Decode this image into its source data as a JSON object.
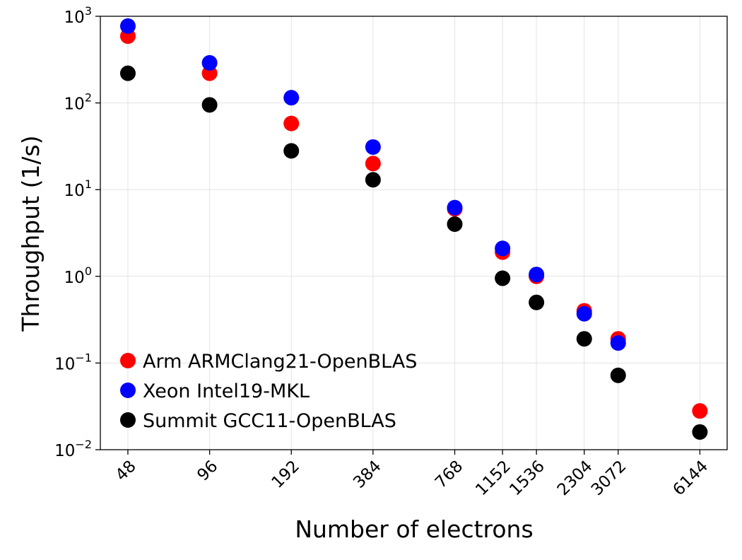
{
  "chart_data": {
    "type": "scatter",
    "title": "",
    "xlabel": "Number of electrons",
    "ylabel": "Throughput (1/s)",
    "xscale": "log",
    "yscale": "log",
    "x": [
      48,
      96,
      192,
      384,
      768,
      1152,
      1536,
      2304,
      3072,
      6144
    ],
    "x_tick_labels": [
      "48",
      "96",
      "192",
      "384",
      "768",
      "1152",
      "1536",
      "2304",
      "3072",
      "6144"
    ],
    "ylim": [
      0.01,
      1000
    ],
    "y_ticks": [
      {
        "value": 0.01,
        "base": "10",
        "exp": "−2"
      },
      {
        "value": 0.1,
        "base": "10",
        "exp": "−1"
      },
      {
        "value": 1,
        "base": "10",
        "exp": "0"
      },
      {
        "value": 10,
        "base": "10",
        "exp": "1"
      },
      {
        "value": 100,
        "base": "10",
        "exp": "2"
      },
      {
        "value": 1000,
        "base": "10",
        "exp": "3"
      }
    ],
    "grid": true,
    "legend_position": "bottom-left",
    "series": [
      {
        "name": "Arm ARMClang21-OpenBLAS",
        "color": "#ff0000",
        "values": [
          590,
          220,
          58,
          20,
          6.0,
          1.9,
          1.0,
          0.4,
          0.19,
          0.028
        ]
      },
      {
        "name": "Xeon Intel19-MKL",
        "color": "#0000ff",
        "values": [
          770,
          290,
          115,
          31,
          6.2,
          2.1,
          1.05,
          0.37,
          0.17,
          null
        ]
      },
      {
        "name": "Summit GCC11-OpenBLAS",
        "color": "#000000",
        "values": [
          220,
          95,
          28,
          13,
          4.0,
          0.95,
          0.5,
          0.19,
          0.072,
          0.016
        ]
      }
    ]
  }
}
